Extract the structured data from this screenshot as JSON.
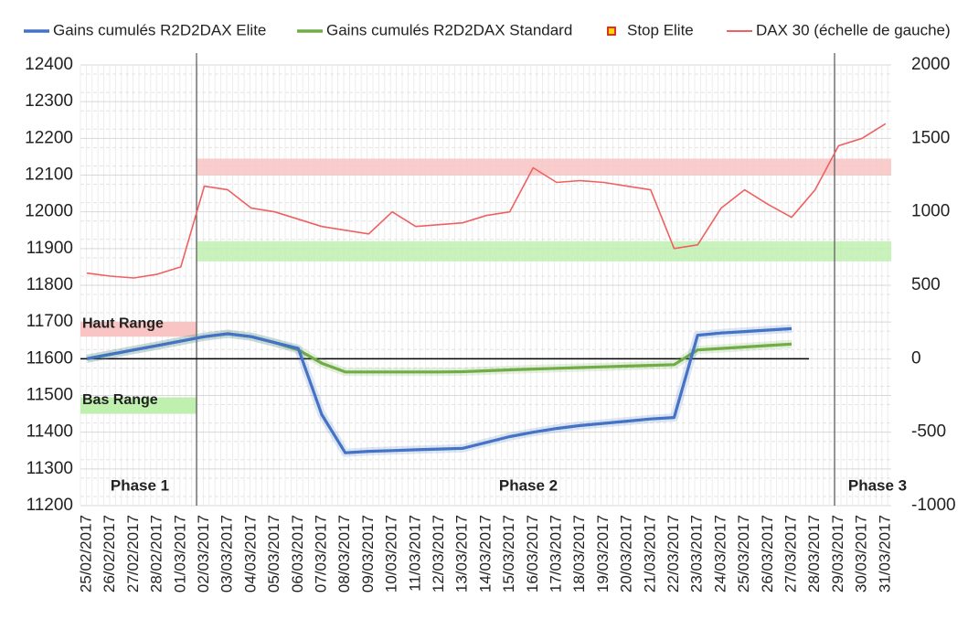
{
  "chart_data": {
    "type": "line",
    "categories": [
      "25/02/2017",
      "26/02/2017",
      "27/02/2017",
      "28/02/2017",
      "01/03/2017",
      "02/03/2017",
      "03/03/2017",
      "04/03/2017",
      "05/03/2017",
      "06/03/2017",
      "07/03/2017",
      "08/03/2017",
      "09/03/2017",
      "10/03/2017",
      "11/03/2017",
      "12/03/2017",
      "13/03/2017",
      "14/03/2017",
      "15/03/2017",
      "16/03/2017",
      "17/03/2017",
      "18/03/2017",
      "19/03/2017",
      "20/03/2017",
      "21/03/2017",
      "22/03/2017",
      "23/03/2017",
      "24/03/2017",
      "25/03/2017",
      "26/03/2017",
      "27/03/2017",
      "28/03/2017",
      "29/03/2017",
      "30/03/2017",
      "31/03/2017"
    ],
    "series": [
      {
        "name": "Gains cumulés R2D2DAX Elite",
        "color": "#4472c4",
        "axis": "y2",
        "values": [
          0,
          30,
          60,
          90,
          120,
          150,
          170,
          150,
          110,
          70,
          -380,
          -640,
          -630,
          -625,
          -620,
          -615,
          -610,
          -570,
          -530,
          -500,
          -475,
          -455,
          -440,
          -425,
          -410,
          -400,
          160,
          175,
          185,
          195,
          205,
          null,
          null,
          null,
          null
        ]
      },
      {
        "name": "Gains cumulés R2D2DAX Standard",
        "color": "#70ad47",
        "axis": "y2",
        "values": [
          0,
          30,
          60,
          90,
          120,
          150,
          170,
          150,
          110,
          60,
          -30,
          -90,
          -90,
          -90,
          -90,
          -90,
          -88,
          -82,
          -76,
          -70,
          -65,
          -60,
          -55,
          -50,
          -45,
          -40,
          60,
          70,
          80,
          90,
          100,
          null,
          null,
          null,
          null
        ]
      },
      {
        "name": "DAX 30 (échelle de gauche)",
        "color": "#f06060",
        "axis": "y",
        "values": [
          11833,
          11825,
          11820,
          11830,
          11850,
          12070,
          12060,
          12010,
          12000,
          11980,
          11960,
          11950,
          11940,
          12000,
          11960,
          11965,
          11970,
          11990,
          12000,
          12120,
          12080,
          12085,
          12080,
          12070,
          12060,
          11900,
          11910,
          12010,
          12060,
          12020,
          11985,
          12060,
          12180,
          12200,
          12240
        ]
      }
    ],
    "marker_legend": {
      "name": "Stop Elite",
      "color": "#ffd700",
      "edge": "#e03020"
    },
    "ylim": [
      11200,
      12400
    ],
    "yticks": [
      11200,
      11300,
      11400,
      11500,
      11600,
      11700,
      11800,
      11900,
      12000,
      12100,
      12200,
      12300,
      12400
    ],
    "y2lim": [
      -1000,
      2000
    ],
    "y2ticks": [
      -1000,
      -500,
      0,
      500,
      1000,
      1500,
      2000
    ],
    "bands": [
      {
        "range": [
          12100,
          12145
        ],
        "color": "#f9c4c4"
      },
      {
        "range": [
          11865,
          11920
        ],
        "color": "#bff0b0"
      }
    ],
    "annotations": [
      {
        "text": "Haut Range",
        "range": [
          11660,
          11700
        ],
        "color": "#f9c4c4"
      },
      {
        "text": "Bas Range",
        "range": [
          11450,
          11495
        ],
        "color": "#bff0b0"
      }
    ],
    "phases": [
      "Phase 1",
      "Phase 2",
      "Phase 3"
    ],
    "grid": true
  }
}
